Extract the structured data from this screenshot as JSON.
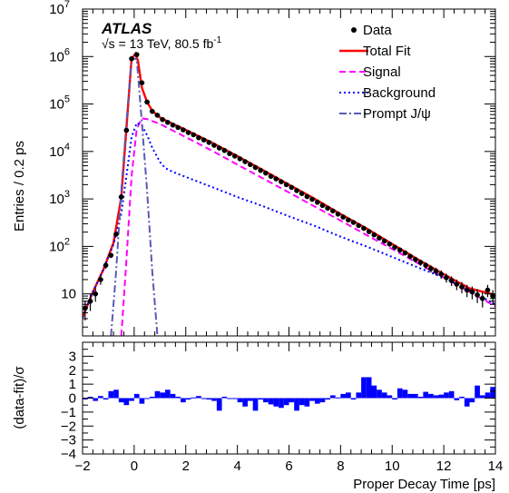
{
  "chart_data": [
    {
      "type": "line",
      "panel": "main",
      "experiment_label": "ATLAS",
      "lumi_label": "√s = 13 TeV, 80.5 fb",
      "lumi_superscript": "-1",
      "xlabel": "Proper Decay Time [ps]",
      "ylabel": "Entries / 0.2 ps",
      "xlim": [
        -2,
        14
      ],
      "ylim": [
        1.3,
        10000000
      ],
      "yscale": "log",
      "x_ticks": [
        "−2",
        "0",
        "2",
        "4",
        "6",
        "8",
        "10",
        "12",
        "14"
      ],
      "y_ticks": [
        "10",
        "10",
        "10",
        "10",
        "10",
        "10",
        "10"
      ],
      "y_tick_exponents": [
        "",
        "2",
        "3",
        "4",
        "5",
        "6",
        "7"
      ],
      "legend_placement": "top-right",
      "legend": [
        {
          "label": "Data",
          "style": "marker",
          "color": "#000000"
        },
        {
          "label": "Total Fit",
          "style": "solid",
          "color": "#ff0000"
        },
        {
          "label": "Signal",
          "style": "dashed",
          "color": "#ff00ff"
        },
        {
          "label": "Background",
          "style": "dotted",
          "color": "#0000ff"
        },
        {
          "label": "Prompt J/ψ",
          "style": "dashdot",
          "color": "#5a5ab4"
        }
      ],
      "series": [
        {
          "name": "Data",
          "color": "#000000",
          "x": [
            -1.9,
            -1.7,
            -1.5,
            -1.3,
            -1.1,
            -0.9,
            -0.7,
            -0.5,
            -0.3,
            -0.1,
            0.1,
            0.3,
            0.5,
            0.7,
            0.9,
            1.1,
            1.3,
            1.5,
            1.7,
            1.9,
            2.1,
            2.3,
            2.5,
            2.7,
            2.9,
            3.1,
            3.3,
            3.5,
            3.7,
            3.9,
            4.1,
            4.3,
            4.5,
            4.7,
            4.9,
            5.1,
            5.3,
            5.5,
            5.7,
            5.9,
            6.1,
            6.3,
            6.5,
            6.7,
            6.9,
            7.1,
            7.3,
            7.5,
            7.7,
            7.9,
            8.1,
            8.3,
            8.5,
            8.7,
            8.9,
            9.1,
            9.3,
            9.5,
            9.7,
            9.9,
            10.1,
            10.3,
            10.5,
            10.7,
            10.9,
            11.1,
            11.3,
            11.5,
            11.7,
            11.9,
            12.1,
            12.3,
            12.5,
            12.7,
            12.9,
            13.1,
            13.3,
            13.5,
            13.7,
            13.9
          ],
          "y": [
            5,
            7,
            10,
            20,
            40,
            65,
            180,
            1100,
            28000,
            900000,
            1100000,
            280000,
            110000,
            70000,
            58000,
            47000,
            41000,
            36000,
            32000,
            28500,
            25000,
            22500,
            19500,
            17500,
            15500,
            13500,
            11800,
            10500,
            9000,
            8000,
            7000,
            6100,
            5300,
            4600,
            4000,
            3500,
            3000,
            2650,
            2300,
            2000,
            1750,
            1500,
            1300,
            1120,
            980,
            850,
            730,
            640,
            560,
            480,
            415,
            360,
            320,
            275,
            240,
            205,
            175,
            150,
            130,
            112,
            96,
            84,
            73,
            62,
            53,
            46,
            40,
            34,
            30,
            26,
            22,
            19,
            16,
            14,
            12,
            11,
            9.5,
            8,
            12,
            9
          ]
        },
        {
          "name": "Total Fit",
          "color": "#ff0000",
          "x": [
            -2,
            -1.6,
            -1.2,
            -0.8,
            -0.5,
            -0.3,
            -0.1,
            0.05,
            0.15,
            0.3,
            0.5,
            0.7,
            1,
            1.5,
            2,
            3,
            4,
            5,
            6,
            7,
            8,
            9,
            10,
            11,
            12,
            13,
            14
          ],
          "y": [
            3.2,
            11,
            32,
            120,
            1100,
            30000,
            900000,
            1150000,
            800000,
            220000,
            110000,
            72000,
            52000,
            38000,
            28500,
            15500,
            8000,
            4000,
            2000,
            1000,
            480,
            240,
            112,
            53,
            26,
            13,
            9.5
          ]
        },
        {
          "name": "Signal",
          "color": "#ff00ff",
          "x": [
            -0.5,
            -0.3,
            -0.1,
            0.1,
            0.3,
            0.5,
            1,
            2,
            3,
            4,
            5,
            6,
            7,
            8,
            9,
            10,
            11,
            12,
            13,
            14
          ],
          "y": [
            1.3,
            50,
            3000,
            30000,
            50000,
            48000,
            38000,
            20000,
            10500,
            5300,
            2700,
            1370,
            690,
            350,
            175,
            88,
            44,
            22,
            11,
            5.5
          ]
        },
        {
          "name": "Background",
          "color": "#0000ff",
          "x": [
            -2,
            -1.6,
            -1.2,
            -0.8,
            -0.5,
            -0.3,
            -0.1,
            0.1,
            0.3,
            0.5,
            0.7,
            1,
            1.2,
            1.5,
            2,
            3,
            4,
            5,
            6,
            7,
            8,
            9,
            10,
            11,
            12,
            13,
            14
          ],
          "y": [
            3.2,
            11,
            32,
            110,
            500,
            3000,
            20000,
            40000,
            35000,
            22000,
            12000,
            6000,
            4500,
            3700,
            2900,
            1800,
            1100,
            700,
            430,
            270,
            160,
            100,
            60,
            36,
            22,
            12,
            6
          ]
        },
        {
          "name": "Prompt J/ψ",
          "color": "#5a5ab4",
          "x": [
            -0.9,
            -0.7,
            -0.5,
            -0.3,
            -0.1,
            0.1,
            0.3,
            0.5,
            0.7,
            0.9
          ],
          "y": [
            1.3,
            30,
            1500,
            40000,
            900000,
            900000,
            40000,
            1500,
            30,
            1.3
          ]
        }
      ]
    },
    {
      "type": "bar",
      "panel": "pull",
      "xlabel": "Proper Decay Time [ps]",
      "ylabel": "(data-fit)/σ",
      "xlim": [
        -2,
        14
      ],
      "ylim": [
        -4,
        4
      ],
      "y_ticks": [
        "−4",
        "−3",
        "−2",
        "−1",
        "0",
        "1",
        "2",
        "3"
      ],
      "bin_width": 0.2,
      "color": "#0000ff",
      "x": [
        -1.9,
        -1.7,
        -1.5,
        -1.3,
        -1.1,
        -0.9,
        -0.7,
        -0.5,
        -0.3,
        -0.1,
        0.1,
        0.3,
        0.5,
        0.7,
        0.9,
        1.1,
        1.3,
        1.5,
        1.7,
        1.9,
        2.1,
        2.3,
        2.5,
        2.7,
        2.9,
        3.1,
        3.3,
        3.5,
        3.7,
        3.9,
        4.1,
        4.3,
        4.5,
        4.7,
        4.9,
        5.1,
        5.3,
        5.5,
        5.7,
        5.9,
        6.1,
        6.3,
        6.5,
        6.7,
        6.9,
        7.1,
        7.3,
        7.5,
        7.7,
        7.9,
        8.1,
        8.3,
        8.5,
        8.7,
        8.9,
        9.1,
        9.3,
        9.5,
        9.7,
        9.9,
        10.1,
        10.3,
        10.5,
        10.7,
        10.9,
        11.1,
        11.3,
        11.5,
        11.7,
        11.9,
        12.1,
        12.3,
        12.5,
        12.7,
        12.9,
        13.1,
        13.3,
        13.5,
        13.7,
        13.9
      ],
      "values": [
        -0.1,
        0.1,
        -0.2,
        0.15,
        -0.1,
        0.5,
        0.6,
        -0.3,
        -0.5,
        -0.2,
        0.3,
        -0.4,
        0,
        0.1,
        0.5,
        0.4,
        0.6,
        0.3,
        0.1,
        -0.3,
        -0.1,
        0.05,
        0.15,
        -0.05,
        -0.1,
        -0.2,
        -0.9,
        0.1,
        -0.05,
        0,
        -0.3,
        -0.6,
        -0.2,
        -0.9,
        -0.1,
        -0.3,
        -0.45,
        -0.6,
        -0.7,
        -0.5,
        -0.3,
        -0.9,
        -0.5,
        -0.6,
        -0.2,
        -0.4,
        -0.3,
        -0.1,
        0.2,
        0.05,
        0.3,
        0.4,
        -0.1,
        0.4,
        1.5,
        1.5,
        0.9,
        0.6,
        0.4,
        0.2,
        -0.1,
        0.7,
        0.6,
        0.3,
        0.3,
        0.1,
        0.45,
        0.3,
        0.2,
        0.25,
        0.4,
        0.5,
        -0.15,
        0.1,
        -0.6,
        -0.3,
        0.9,
        0.2,
        0.4,
        0.8
      ]
    }
  ]
}
